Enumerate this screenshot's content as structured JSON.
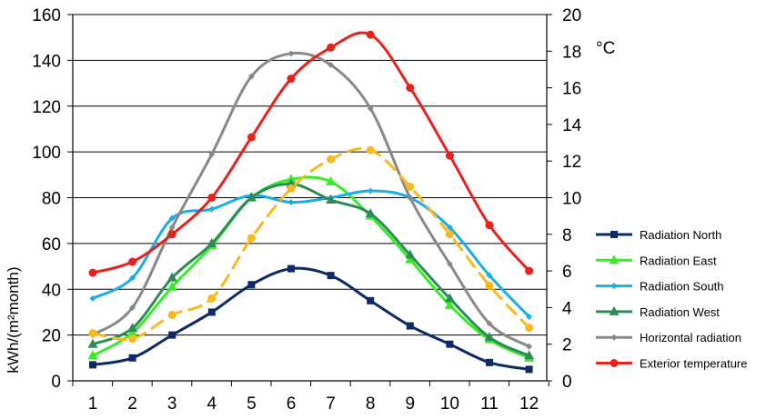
{
  "chart_data": {
    "type": "line",
    "title": "",
    "xlabel": "",
    "ylabel": "kWh/(m²month)",
    "y2label": "°C",
    "x": [
      1,
      2,
      3,
      4,
      5,
      6,
      7,
      8,
      9,
      10,
      11,
      12
    ],
    "ylim": [
      0,
      160
    ],
    "yticks": [
      0,
      20,
      40,
      60,
      80,
      100,
      120,
      140,
      160
    ],
    "y2lim": [
      0,
      20
    ],
    "y2ticks": [
      0,
      2,
      4,
      6,
      8,
      10,
      12,
      14,
      16,
      18,
      20
    ],
    "grid": "horizontal",
    "legend_position": "right",
    "series": [
      {
        "name": "Radiation North",
        "color": "#0d2a66",
        "marker": "square",
        "dash": false,
        "smooth": true,
        "axis": "left",
        "values": [
          7,
          10,
          20,
          30,
          42,
          49,
          46,
          35,
          24,
          16,
          8,
          5
        ]
      },
      {
        "name": "Radiation East",
        "color": "#33ee22",
        "marker": "triangle",
        "dash": false,
        "smooth": true,
        "axis": "left",
        "values": [
          11,
          21,
          41,
          59,
          80,
          88,
          87,
          72,
          53,
          33,
          18,
          10
        ]
      },
      {
        "name": "Radiation South",
        "color": "#1aaee8",
        "marker": "diamond",
        "dash": false,
        "smooth": true,
        "axis": "left",
        "values": [
          36,
          45,
          71,
          75,
          81,
          78,
          80,
          83,
          80,
          67,
          46,
          28
        ]
      },
      {
        "name": "Radiation West",
        "color": "#2e8b57",
        "marker": "triangle",
        "dash": false,
        "smooth": true,
        "axis": "left",
        "values": [
          16,
          23,
          45,
          60,
          80,
          86,
          79,
          73,
          55,
          36,
          19,
          11
        ]
      },
      {
        "name": "Horizontal radiation",
        "color": "#888888",
        "marker": "diamond",
        "dash": false,
        "smooth": true,
        "axis": "left",
        "values": [
          20,
          32,
          67,
          99,
          133,
          143,
          138,
          119,
          80,
          51,
          25,
          15
        ]
      },
      {
        "name": "Exterior temperature",
        "color": "#e8211c",
        "marker": "circle",
        "dash": false,
        "smooth": true,
        "axis": "right",
        "values": [
          5.9,
          6.5,
          8.0,
          10.0,
          13.3,
          16.5,
          18.2,
          18.9,
          16.0,
          12.3,
          8.5,
          6.0
        ]
      },
      {
        "name": "",
        "color": "#f7b91e",
        "marker": "circle",
        "dash": true,
        "smooth": true,
        "axis": "right",
        "values": [
          2.6,
          2.3,
          3.6,
          4.5,
          7.8,
          10.5,
          12.1,
          12.6,
          10.6,
          8.0,
          5.2,
          2.9
        ]
      }
    ]
  }
}
